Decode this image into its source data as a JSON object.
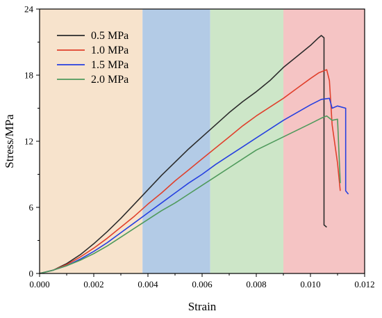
{
  "chart_data": {
    "type": "line",
    "xlabel": "Strain",
    "ylabel": "Stress/MPa",
    "xlim": [
      0,
      0.012
    ],
    "ylim": [
      0,
      24
    ],
    "x_ticks": [
      0,
      0.002,
      0.004,
      0.006,
      0.008,
      0.01,
      0.012
    ],
    "x_tick_labels": [
      "0.000",
      "0.002",
      "0.004",
      "0.006",
      "0.008",
      "0.010",
      "0.012"
    ],
    "y_ticks": [
      0,
      6,
      12,
      18,
      24
    ],
    "y_tick_labels": [
      "0",
      "6",
      "12",
      "18",
      "24"
    ],
    "grid": false,
    "legend_position": "top-left",
    "background_bands": [
      {
        "x0": 0,
        "x1": 0.0038,
        "color": "#f7e3cc"
      },
      {
        "x0": 0.0038,
        "x1": 0.0063,
        "color": "#b3cbe6"
      },
      {
        "x0": 0.0063,
        "x1": 0.009,
        "color": "#cde6c8"
      },
      {
        "x0": 0.009,
        "x1": 0.012,
        "color": "#f5c4c4"
      }
    ],
    "series": [
      {
        "name": "0.5 MPa",
        "color": "#2b2b2b",
        "points": [
          [
            0,
            0
          ],
          [
            0.0005,
            0.3
          ],
          [
            0.001,
            0.9
          ],
          [
            0.0015,
            1.7
          ],
          [
            0.002,
            2.7
          ],
          [
            0.0025,
            3.8
          ],
          [
            0.003,
            5.0
          ],
          [
            0.0035,
            6.3
          ],
          [
            0.004,
            7.6
          ],
          [
            0.0045,
            8.9
          ],
          [
            0.005,
            10.1
          ],
          [
            0.0055,
            11.3
          ],
          [
            0.006,
            12.4
          ],
          [
            0.0065,
            13.5
          ],
          [
            0.007,
            14.6
          ],
          [
            0.0075,
            15.6
          ],
          [
            0.008,
            16.5
          ],
          [
            0.0085,
            17.5
          ],
          [
            0.009,
            18.7
          ],
          [
            0.0095,
            19.7
          ],
          [
            0.01,
            20.7
          ],
          [
            0.0103,
            21.4
          ],
          [
            0.0104,
            21.6
          ],
          [
            0.0105,
            21.4
          ],
          [
            0.0105,
            4.4
          ],
          [
            0.0106,
            4.2
          ]
        ]
      },
      {
        "name": "1.0 MPa",
        "color": "#e0402c",
        "points": [
          [
            0,
            0
          ],
          [
            0.0005,
            0.3
          ],
          [
            0.001,
            0.8
          ],
          [
            0.0015,
            1.5
          ],
          [
            0.002,
            2.3
          ],
          [
            0.0025,
            3.2
          ],
          [
            0.003,
            4.2
          ],
          [
            0.0035,
            5.2
          ],
          [
            0.004,
            6.3
          ],
          [
            0.0045,
            7.3
          ],
          [
            0.005,
            8.4
          ],
          [
            0.0055,
            9.4
          ],
          [
            0.006,
            10.4
          ],
          [
            0.0065,
            11.4
          ],
          [
            0.007,
            12.4
          ],
          [
            0.0075,
            13.4
          ],
          [
            0.008,
            14.3
          ],
          [
            0.0085,
            15.1
          ],
          [
            0.009,
            15.9
          ],
          [
            0.0095,
            16.8
          ],
          [
            0.01,
            17.7
          ],
          [
            0.0103,
            18.2
          ],
          [
            0.0106,
            18.5
          ],
          [
            0.0107,
            17.5
          ],
          [
            0.0108,
            13.5
          ],
          [
            0.011,
            10.0
          ],
          [
            0.0111,
            7.5
          ]
        ]
      },
      {
        "name": "1.5 MPa",
        "color": "#2640e0",
        "points": [
          [
            0,
            0
          ],
          [
            0.0005,
            0.3
          ],
          [
            0.001,
            0.7
          ],
          [
            0.0015,
            1.3
          ],
          [
            0.002,
            2.0
          ],
          [
            0.0025,
            2.8
          ],
          [
            0.003,
            3.7
          ],
          [
            0.0035,
            4.6
          ],
          [
            0.004,
            5.5
          ],
          [
            0.0045,
            6.4
          ],
          [
            0.005,
            7.3
          ],
          [
            0.0055,
            8.2
          ],
          [
            0.006,
            9.0
          ],
          [
            0.0065,
            9.9
          ],
          [
            0.007,
            10.7
          ],
          [
            0.0075,
            11.5
          ],
          [
            0.008,
            12.3
          ],
          [
            0.0085,
            13.1
          ],
          [
            0.009,
            13.9
          ],
          [
            0.0095,
            14.6
          ],
          [
            0.01,
            15.3
          ],
          [
            0.0104,
            15.8
          ],
          [
            0.0107,
            15.9
          ],
          [
            0.0108,
            15.0
          ],
          [
            0.011,
            15.2
          ],
          [
            0.0113,
            15.0
          ],
          [
            0.0113,
            7.5
          ],
          [
            0.0114,
            7.2
          ]
        ]
      },
      {
        "name": "2.0 MPa",
        "color": "#4f9a5c",
        "points": [
          [
            0,
            0
          ],
          [
            0.0005,
            0.3
          ],
          [
            0.001,
            0.7
          ],
          [
            0.0015,
            1.2
          ],
          [
            0.002,
            1.8
          ],
          [
            0.0025,
            2.5
          ],
          [
            0.003,
            3.3
          ],
          [
            0.0035,
            4.1
          ],
          [
            0.004,
            4.9
          ],
          [
            0.0045,
            5.7
          ],
          [
            0.005,
            6.4
          ],
          [
            0.0055,
            7.2
          ],
          [
            0.006,
            8.0
          ],
          [
            0.0065,
            8.8
          ],
          [
            0.007,
            9.6
          ],
          [
            0.0075,
            10.4
          ],
          [
            0.008,
            11.2
          ],
          [
            0.0085,
            11.8
          ],
          [
            0.009,
            12.4
          ],
          [
            0.0095,
            13.0
          ],
          [
            0.01,
            13.6
          ],
          [
            0.0104,
            14.1
          ],
          [
            0.0106,
            14.3
          ],
          [
            0.0108,
            13.9
          ],
          [
            0.011,
            14.0
          ],
          [
            0.0111,
            8.2
          ]
        ]
      }
    ]
  }
}
